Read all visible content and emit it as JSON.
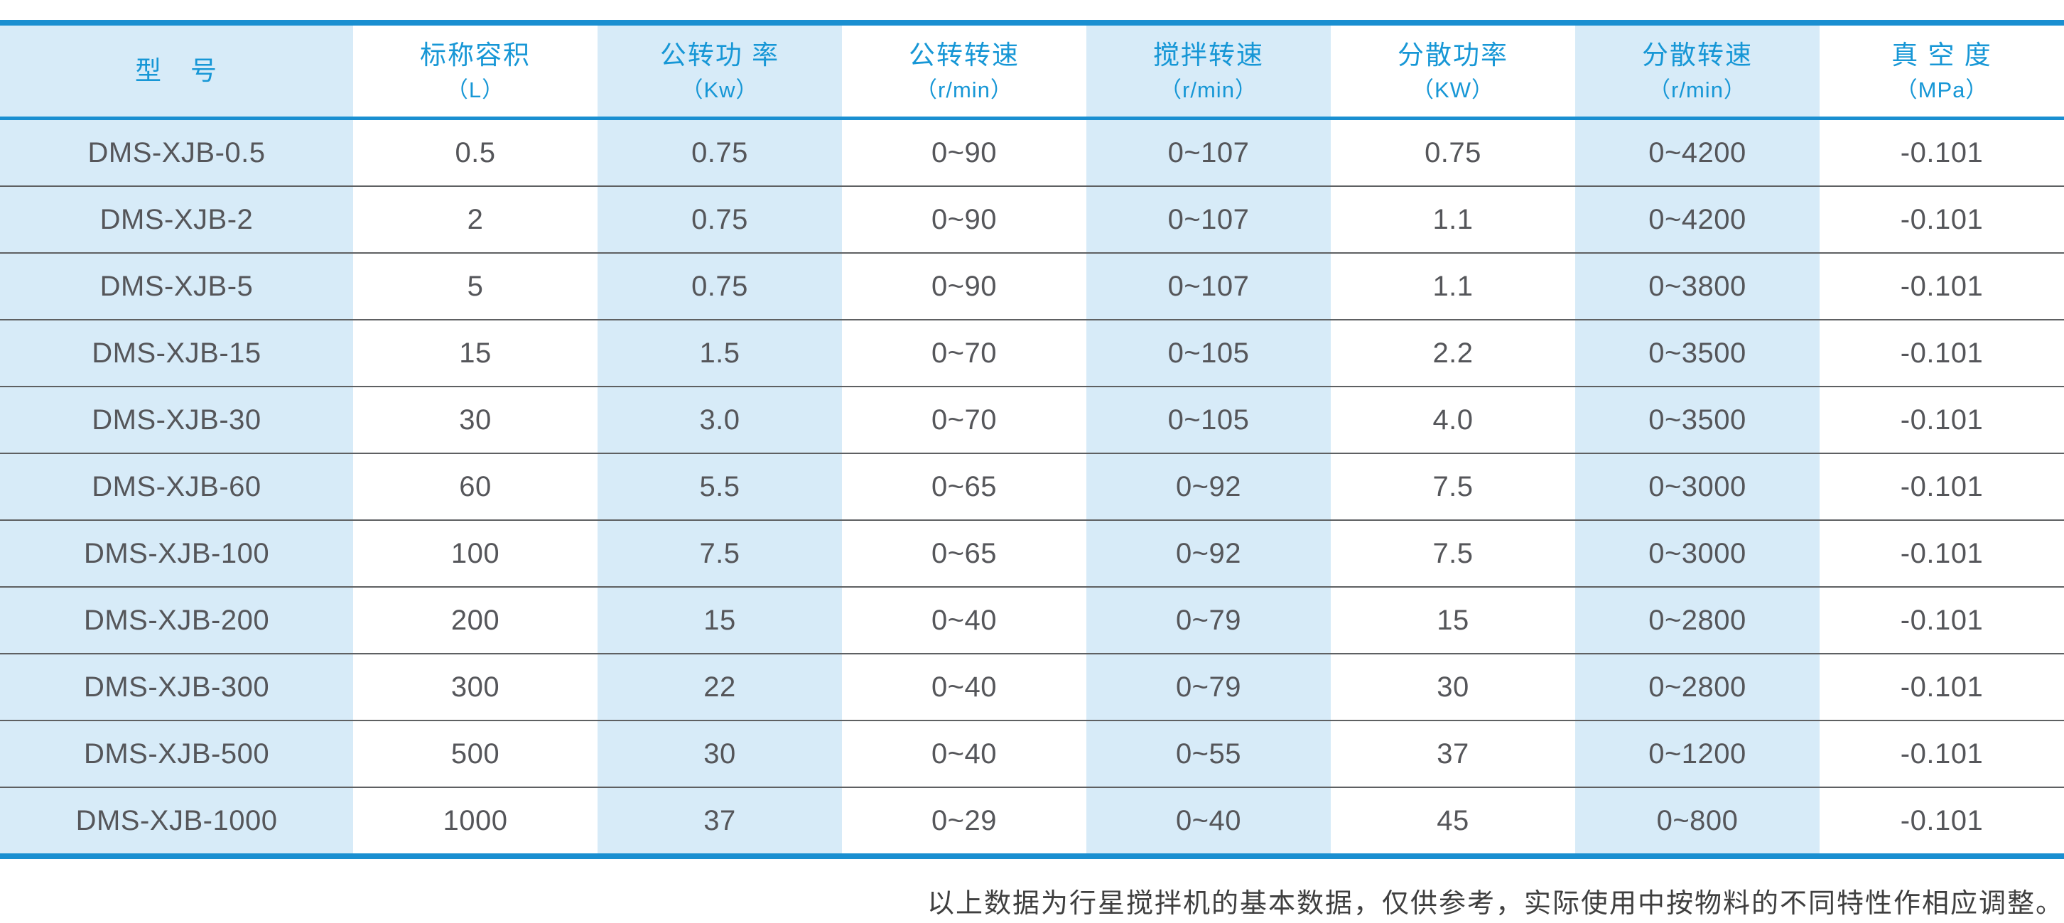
{
  "table": {
    "columns": [
      {
        "label": "型　号",
        "unit": ""
      },
      {
        "label": "标称容积",
        "unit": "（L）"
      },
      {
        "label": "公转功 率",
        "unit": "（Kw）"
      },
      {
        "label": "公转转速",
        "unit": "（r/min）"
      },
      {
        "label": "搅拌转速",
        "unit": "（r/min）"
      },
      {
        "label": "分散功率",
        "unit": "（KW）"
      },
      {
        "label": "分散转速",
        "unit": "（r/min）"
      },
      {
        "label": "真 空 度",
        "unit": "（MPa）"
      }
    ],
    "rows": [
      [
        "DMS-XJB-0.5",
        "0.5",
        "0.75",
        "0~90",
        "0~107",
        "0.75",
        "0~4200",
        "-0.101"
      ],
      [
        "DMS-XJB-2",
        "2",
        "0.75",
        "0~90",
        "0~107",
        "1.1",
        "0~4200",
        "-0.101"
      ],
      [
        "DMS-XJB-5",
        "5",
        "0.75",
        "0~90",
        "0~107",
        "1.1",
        "0~3800",
        "-0.101"
      ],
      [
        "DMS-XJB-15",
        "15",
        "1.5",
        "0~70",
        "0~105",
        "2.2",
        "0~3500",
        "-0.101"
      ],
      [
        "DMS-XJB-30",
        "30",
        "3.0",
        "0~70",
        "0~105",
        "4.0",
        "0~3500",
        "-0.101"
      ],
      [
        "DMS-XJB-60",
        "60",
        "5.5",
        "0~65",
        "0~92",
        "7.5",
        "0~3000",
        "-0.101"
      ],
      [
        "DMS-XJB-100",
        "100",
        "7.5",
        "0~65",
        "0~92",
        "7.5",
        "0~3000",
        "-0.101"
      ],
      [
        "DMS-XJB-200",
        "200",
        "15",
        "0~40",
        "0~79",
        "15",
        "0~2800",
        "-0.101"
      ],
      [
        "DMS-XJB-300",
        "300",
        "22",
        "0~40",
        "0~79",
        "30",
        "0~2800",
        "-0.101"
      ],
      [
        "DMS-XJB-500",
        "500",
        "30",
        "0~40",
        "0~55",
        "37",
        "0~1200",
        "-0.101"
      ],
      [
        "DMS-XJB-1000",
        "1000",
        "37",
        "0~29",
        "0~40",
        "45",
        "0~800",
        "-0.101"
      ]
    ]
  },
  "footer": {
    "note": "以上数据为行星搅拌机的基本数据，仅供参考，实际使用中按物料的不同特性作相应调整。"
  },
  "colors": {
    "accent_blue": "#1a8fd1",
    "header_text_blue": "#1797d6",
    "stripe_light_blue": "#d7ebf8",
    "data_text_gray": "#55565a",
    "row_separator_gray": "#5e6062"
  }
}
